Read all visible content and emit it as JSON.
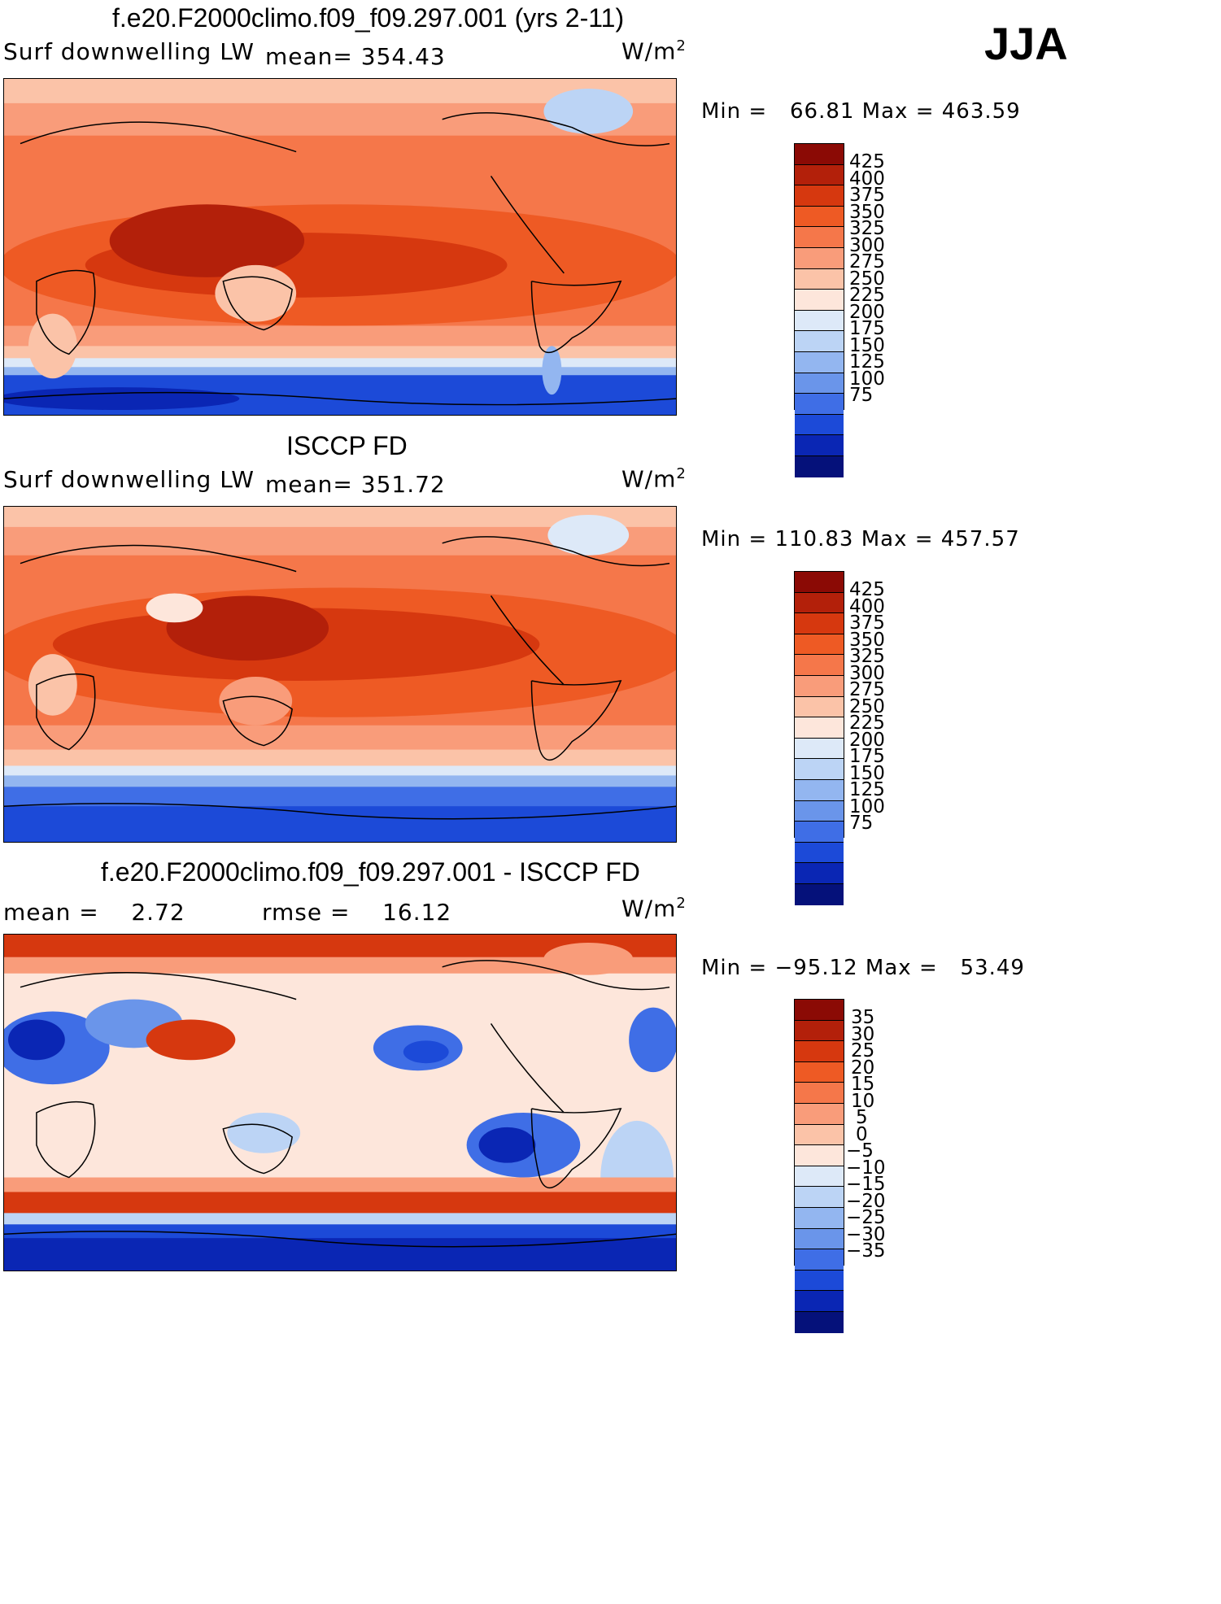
{
  "season": "JJA",
  "panels": [
    {
      "title": "f.e20.F2000climo.f09_f09.297.001 (yrs 2-11)",
      "left_label": "Surf downwelling LW",
      "mid_label": "mean= 354.43",
      "unit_base": "W/m",
      "unit_sup": "2",
      "minmax": "Min =   66.81 Max = 463.59",
      "colorbar_labels": [
        "425",
        "400",
        "375",
        "350",
        "325",
        "300",
        "275",
        "250",
        "225",
        "200",
        "175",
        "150",
        "125",
        "100",
        "75"
      ],
      "colorbar_colors": [
        "#8b0a05",
        "#b3200a",
        "#d6380f",
        "#ee5a24",
        "#f5774a",
        "#f99c7a",
        "#fbc3a8",
        "#fde6db",
        "#dde9f8",
        "#bcd4f5",
        "#93b6f0",
        "#6a95ea",
        "#3f6ee6",
        "#1c4ad8",
        "#0a26b4",
        "#05117a"
      ]
    },
    {
      "title": "ISCCP FD",
      "left_label": "Surf downwelling LW",
      "mid_label": "mean= 351.72",
      "unit_base": "W/m",
      "unit_sup": "2",
      "minmax": "Min = 110.83 Max = 457.57",
      "colorbar_labels": [
        "425",
        "400",
        "375",
        "350",
        "325",
        "300",
        "275",
        "250",
        "225",
        "200",
        "175",
        "150",
        "125",
        "100",
        "75"
      ],
      "colorbar_colors": [
        "#8b0a05",
        "#b3200a",
        "#d6380f",
        "#ee5a24",
        "#f5774a",
        "#f99c7a",
        "#fbc3a8",
        "#fde6db",
        "#dde9f8",
        "#bcd4f5",
        "#93b6f0",
        "#6a95ea",
        "#3f6ee6",
        "#1c4ad8",
        "#0a26b4",
        "#05117a"
      ]
    },
    {
      "title": "f.e20.F2000climo.f09_f09.297.001 - ISCCP FD",
      "left_label": "mean =    2.72",
      "mid_label": "rmse =    16.12",
      "unit_base": "W/m",
      "unit_sup": "2",
      "minmax": "Min = −95.12 Max =   53.49",
      "colorbar_labels": [
        "35",
        "30",
        "25",
        "20",
        "15",
        "10",
        "5",
        "0",
        "−5",
        "−10",
        "−15",
        "−20",
        "−25",
        "−30",
        "−35"
      ],
      "colorbar_colors": [
        "#8b0a05",
        "#b3200a",
        "#d6380f",
        "#ee5a24",
        "#f5774a",
        "#f99c7a",
        "#fbc3a8",
        "#fde6db",
        "#dde9f8",
        "#bcd4f5",
        "#93b6f0",
        "#6a95ea",
        "#3f6ee6",
        "#1c4ad8",
        "#0a26b4",
        "#05117a"
      ]
    }
  ]
}
